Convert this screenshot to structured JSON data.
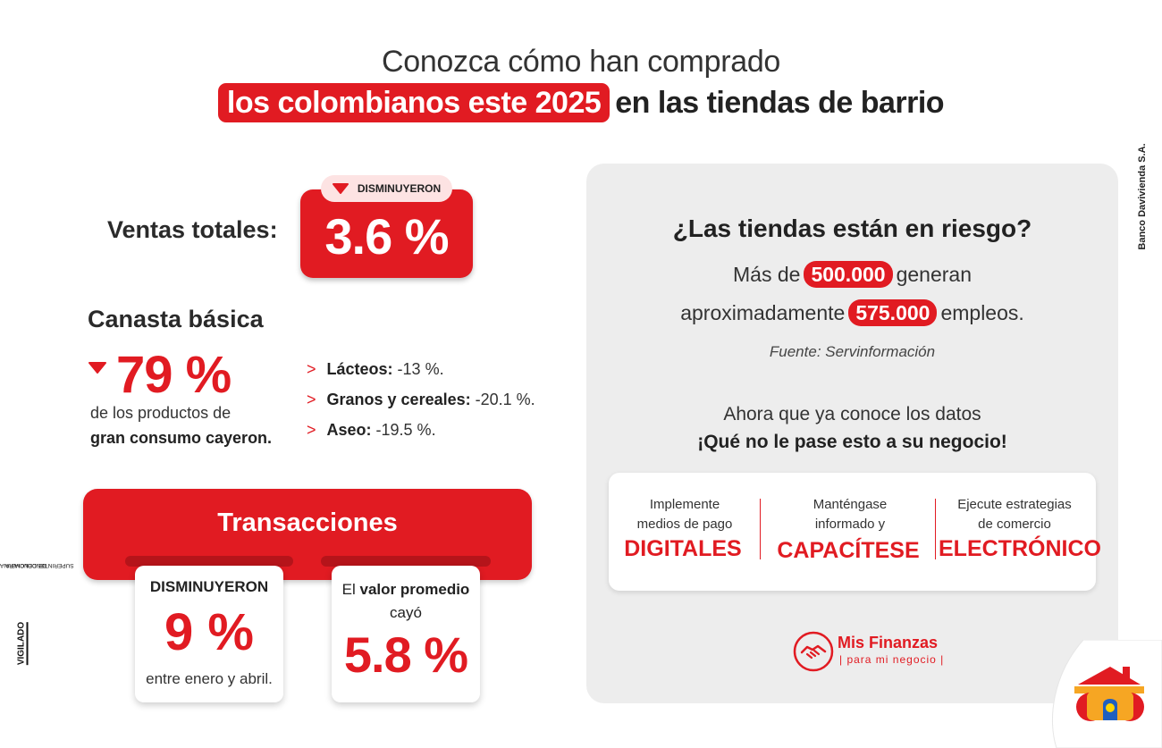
{
  "title": {
    "line1": "Conozca cómo han comprado",
    "highlight": "los colombianos este 2025",
    "rest": "en las tiendas de barrio"
  },
  "ventas": {
    "label": "Ventas totales:",
    "badge": "DISMINUYERON",
    "value": "3.6 %"
  },
  "canasta": {
    "title": "Canasta básica",
    "value": "79 %",
    "desc_line1": "de los productos de",
    "desc_line2": "gran consumo cayeron.",
    "categories": [
      {
        "chevron": ">",
        "name": "Lácteos:",
        "value": " -13 %."
      },
      {
        "chevron": ">",
        "name": "Granos y cereales:",
        "value": " -20.1 %."
      },
      {
        "chevron": ">",
        "name": "Aseo:",
        "value": " -19.5 %."
      }
    ]
  },
  "transacciones": {
    "title": "Transacciones",
    "card1": {
      "label": "DISMINUYERON",
      "value": "9 %",
      "note": "entre enero y abril."
    },
    "card2": {
      "text_pre": "El ",
      "text_bold": "valor promedio",
      "text_post": " cayó",
      "value": "5.8 %"
    }
  },
  "panel": {
    "question": "¿Las tiendas están en riesgo?",
    "line1_pre": "Más de",
    "line1_num": "500.000",
    "line1_post": "generan",
    "line2_pre": "aproximadamente",
    "line2_num": "575.000",
    "line2_post": "empleos.",
    "source": "Fuente: Servinformación",
    "cta_line1": "Ahora que ya conoce los datos",
    "cta_line2": "¡Qué no le pase esto a su negocio!",
    "tips": [
      {
        "small1": "Implemente",
        "small2": "medios de pago",
        "big": "DIGITALES"
      },
      {
        "small1": "Manténgase",
        "small2": "informado y",
        "big": "CAPACÍTESE"
      },
      {
        "small1": "Ejecute estrategias",
        "small2": "de comercio",
        "big": "ELECTRÓNICO"
      }
    ],
    "logo_name": "Mis Finanzas",
    "logo_tag": "| para mi negocio |"
  },
  "side": {
    "bank": "Banco Davivienda S.A.",
    "vigilado": "VIGILADO",
    "super_line1": "SUPERINTENDENCIA FINANCIERA",
    "super_line2": "DE COLOMBIA"
  },
  "colors": {
    "accent": "#e11b22",
    "panel": "#ededed"
  },
  "icons": [
    "caret-down-icon",
    "handshake-icon",
    "davivienda-house-icon"
  ]
}
